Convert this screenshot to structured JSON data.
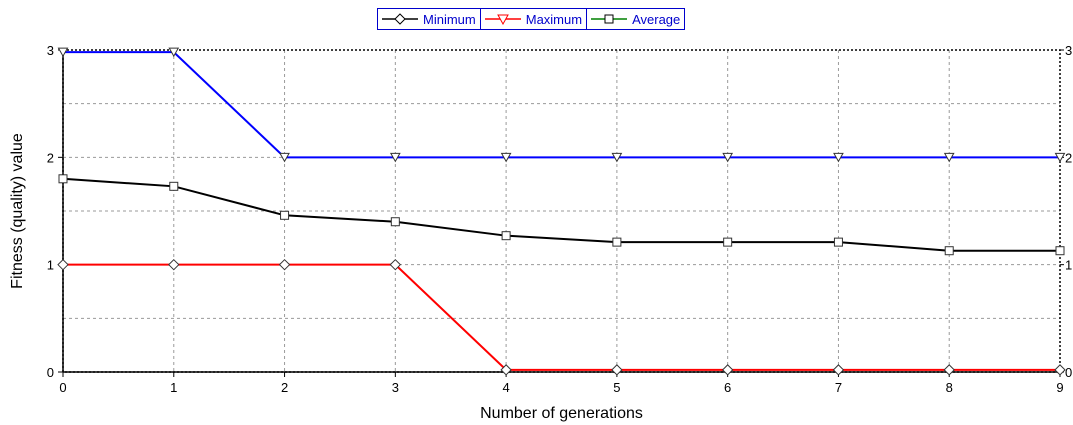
{
  "chart_data": {
    "type": "line",
    "title": "",
    "xlabel": "Number of generations",
    "ylabel": "Fitness (quality) value",
    "x": [
      0,
      1,
      2,
      3,
      4,
      5,
      6,
      7,
      8,
      9
    ],
    "xlim": [
      0,
      9
    ],
    "ylim": [
      0,
      3
    ],
    "xticks": [
      "0",
      "1",
      "2",
      "3",
      "4",
      "5",
      "6",
      "7",
      "8",
      "9"
    ],
    "yticks": [
      "0",
      "1",
      "2",
      "3"
    ],
    "yticks_right": [
      "0",
      "1",
      "2",
      "3"
    ],
    "grid": true,
    "legend_position": "top-center",
    "legend": [
      {
        "label": "Minimum",
        "line_color": "#000000",
        "marker": "diamond"
      },
      {
        "label": "Maximum",
        "line_color": "#ff0000",
        "marker": "triangle-down"
      },
      {
        "label": "Average",
        "line_color": "#008000",
        "marker": "square"
      }
    ],
    "series": [
      {
        "color": "#ff0000",
        "marker": "diamond",
        "values": [
          1,
          1,
          1,
          1,
          0.02,
          0.02,
          0.02,
          0.02,
          0.02,
          0.02
        ]
      },
      {
        "color": "#0000ff",
        "marker": "triangle-down",
        "values": [
          2.98,
          2.98,
          2,
          2,
          2,
          2,
          2,
          2,
          2,
          2
        ]
      },
      {
        "color": "#000000",
        "marker": "square",
        "values": [
          1.8,
          1.73,
          1.46,
          1.4,
          1.27,
          1.21,
          1.21,
          1.21,
          1.13,
          1.13
        ]
      }
    ]
  }
}
